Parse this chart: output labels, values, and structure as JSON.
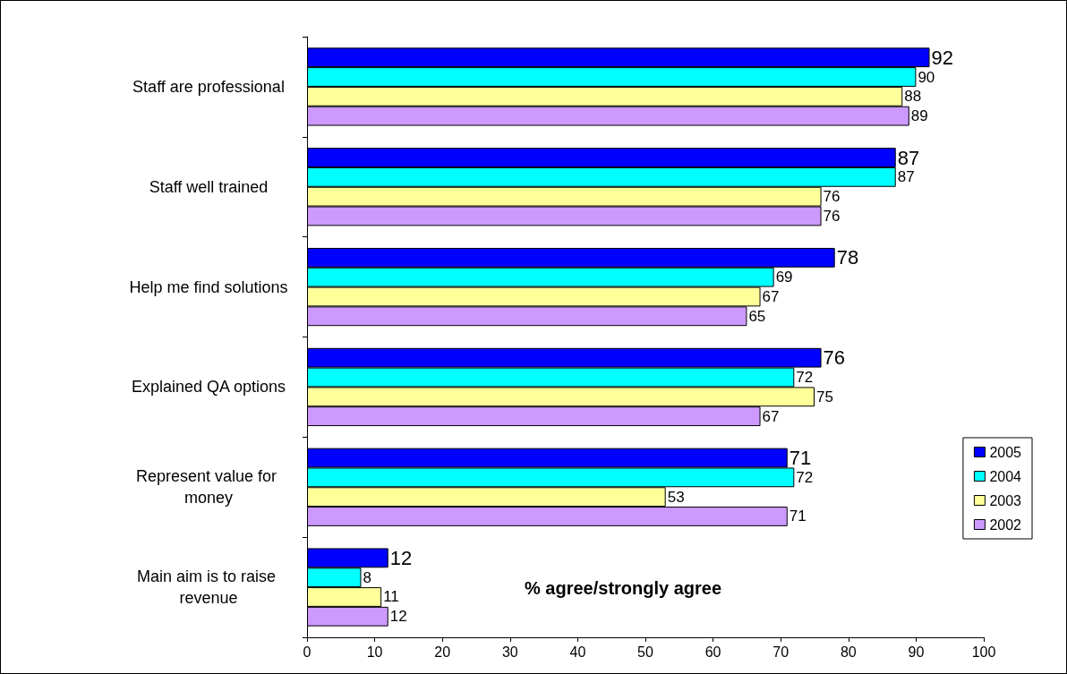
{
  "chart_data": {
    "type": "bar",
    "orientation": "horizontal",
    "categories": [
      "Staff are professional",
      "Staff well trained",
      "Help me find solutions",
      "Explained QA options",
      "Represent value for money",
      "Main aim is to raise revenue"
    ],
    "series": [
      {
        "name": "2005",
        "color": "#0000ff",
        "values": [
          92,
          87,
          78,
          76,
          71,
          12
        ]
      },
      {
        "name": "2004",
        "color": "#00ffff",
        "values": [
          90,
          87,
          69,
          72,
          72,
          8
        ]
      },
      {
        "name": "2003",
        "color": "#ffff99",
        "values": [
          88,
          76,
          67,
          75,
          53,
          11
        ]
      },
      {
        "name": "2002",
        "color": "#cc99ff",
        "values": [
          89,
          76,
          65,
          67,
          71,
          12
        ]
      }
    ],
    "xlim": [
      0,
      100
    ],
    "xticks": [
      0,
      10,
      20,
      30,
      40,
      50,
      60,
      70,
      80,
      90,
      100
    ],
    "data_labels": true,
    "grid": false,
    "legend": "bottom right",
    "annotations": [
      "% agree/strongly agree"
    ]
  }
}
